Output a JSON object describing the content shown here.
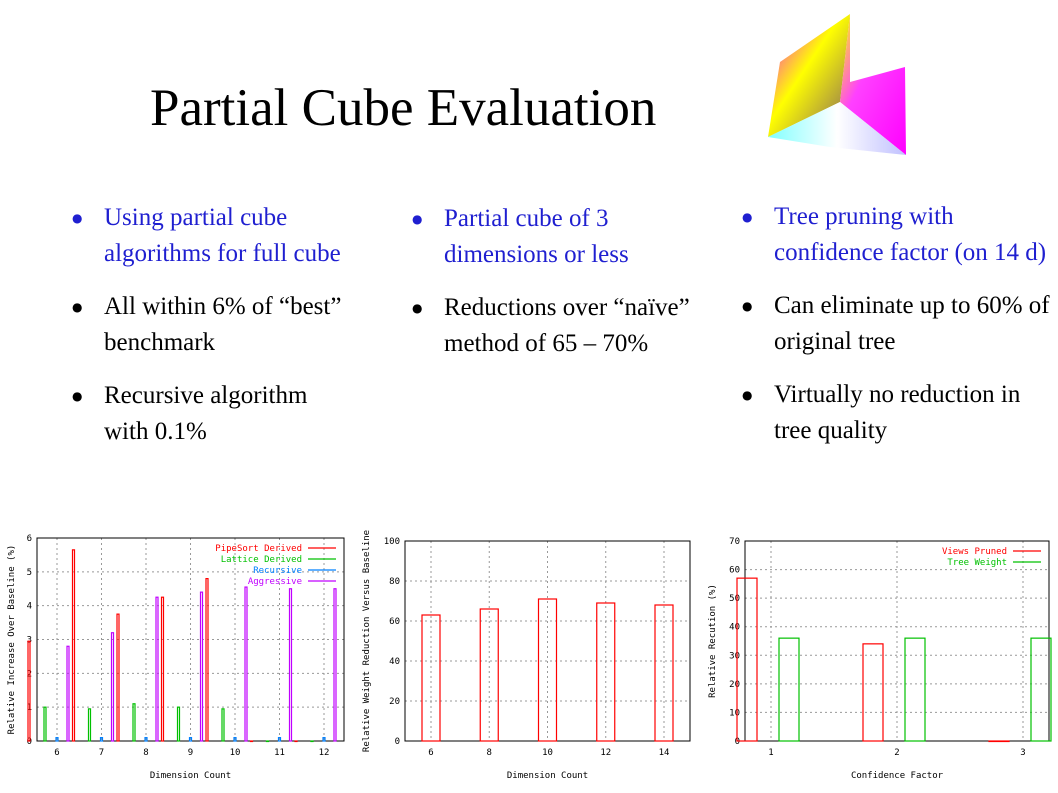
{
  "slide": {
    "title": "Partial Cube Evaluation",
    "logo_icon": "cube-corner-logo"
  },
  "columns": [
    {
      "bullets": [
        {
          "text": "Using partial cube algorithms for full cube",
          "color": "#1f1fd0"
        },
        {
          "text": "All within 6% of “best” benchmark",
          "color": "#000000"
        },
        {
          "text": "Recursive algorithm with 0.1%",
          "color": "#000000"
        }
      ]
    },
    {
      "bullets": [
        {
          "text": "Partial cube of 3 dimensions or less",
          "color": "#1f1fd0"
        },
        {
          "text": "Reductions over “naïve” method of 65 – 70%",
          "color": "#000000"
        }
      ]
    },
    {
      "bullets": [
        {
          "text": "Tree pruning with confidence factor (on 14 d)",
          "color": "#1f1fd0"
        },
        {
          "text": "Can eliminate up to 60% of original tree",
          "color": "#000000"
        },
        {
          "text": "Virtually no reduction in tree quality",
          "color": "#000000"
        }
      ]
    }
  ],
  "chart_data": [
    {
      "type": "bar",
      "xlabel": "Dimension Count",
      "ylabel": "Relative Increase Over Baseline (%)",
      "categories": [
        "6",
        "7",
        "8",
        "9",
        "10",
        "11",
        "12"
      ],
      "ylim": [
        0,
        6
      ],
      "yticks": [
        0,
        1,
        2,
        3,
        4,
        5,
        6
      ],
      "legend_position": "top-right",
      "grid": true,
      "series": [
        {
          "name": "PipeSort Derived",
          "color": "#ff0000",
          "values": [
            2.95,
            5.65,
            3.75,
            4.25,
            4.8,
            0.0,
            0.0
          ]
        },
        {
          "name": "Lattice Derived",
          "color": "#00c000",
          "values": [
            1.0,
            0.95,
            1.1,
            1.0,
            0.95,
            0.0,
            0.0
          ]
        },
        {
          "name": "Recursive",
          "color": "#0080ff",
          "values": [
            0.1,
            0.1,
            0.1,
            0.1,
            0.1,
            0.1,
            0.1
          ]
        },
        {
          "name": "Aggressive",
          "color": "#c000ff",
          "values": [
            2.8,
            3.2,
            4.25,
            4.4,
            4.55,
            4.5,
            4.5
          ]
        }
      ]
    },
    {
      "type": "bar",
      "xlabel": "Dimension Count",
      "ylabel": "Relative Weight Reduction Versus Baseline",
      "categories": [
        "6",
        "8",
        "10",
        "12",
        "14"
      ],
      "ylim": [
        0,
        100
      ],
      "yticks": [
        0,
        20,
        40,
        60,
        80,
        100
      ],
      "grid": true,
      "series": [
        {
          "name": "",
          "color": "#ff0000",
          "values": [
            63,
            66,
            71,
            69,
            68
          ]
        }
      ]
    },
    {
      "type": "bar",
      "xlabel": "Confidence Factor",
      "ylabel": "Relative Recution (%)",
      "categories": [
        "1",
        "2",
        "3"
      ],
      "ylim": [
        0,
        70
      ],
      "yticks": [
        0,
        10,
        20,
        30,
        40,
        50,
        60,
        70
      ],
      "legend_position": "top-right",
      "grid": true,
      "series": [
        {
          "name": "Views Pruned",
          "color": "#ff0000",
          "values": [
            57,
            34,
            0
          ]
        },
        {
          "name": "Tree Weight",
          "color": "#00c000",
          "values": [
            36,
            36,
            36
          ]
        }
      ]
    }
  ]
}
